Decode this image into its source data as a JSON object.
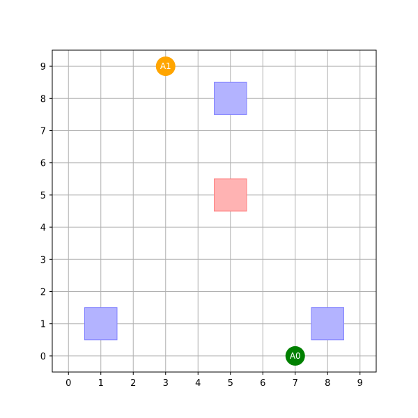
{
  "grid": {
    "x_ticks": [
      "0",
      "1",
      "2",
      "3",
      "4",
      "5",
      "6",
      "7",
      "8",
      "9"
    ],
    "y_ticks": [
      "0",
      "1",
      "2",
      "3",
      "4",
      "5",
      "6",
      "7",
      "8",
      "9"
    ],
    "xlim": [
      -0.5,
      9.5
    ],
    "ylim": [
      -0.5,
      9.5
    ],
    "grid": true
  },
  "colors": {
    "obstacle_fill": "#b3b3ff",
    "obstacle_stroke": "#8080ff",
    "goal_fill": "#ffb3b3",
    "goal_stroke": "#ff8080",
    "gridline": "#b0b0b0"
  },
  "obstacles": [
    {
      "x": 5,
      "y": 8
    },
    {
      "x": 1,
      "y": 1
    },
    {
      "x": 8,
      "y": 1
    }
  ],
  "goals": [
    {
      "x": 5,
      "y": 5
    }
  ],
  "agents": [
    {
      "label": "A1",
      "x": 3,
      "y": 9,
      "color": "#ffa500"
    },
    {
      "label": "A0",
      "x": 7,
      "y": 0,
      "color": "#008000"
    }
  ]
}
